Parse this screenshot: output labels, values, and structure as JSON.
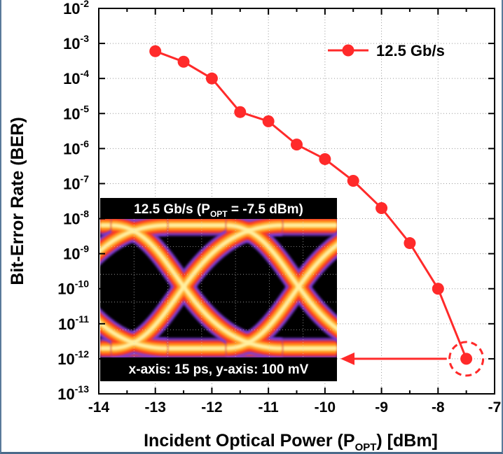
{
  "chart_data": {
    "type": "line",
    "xlabel": {
      "main": "Incident Optical Power (P",
      "sub": "OPT",
      "tail": ") [dBm]"
    },
    "ylabel": "Bit-Error Rate (BER)",
    "xlim": [
      -14,
      -7
    ],
    "ylim_exponent": [
      -13,
      -2
    ],
    "y_scale": "log",
    "grid": "dotted",
    "x_ticks": [
      "-14",
      "-13",
      "-12",
      "-11",
      "-10",
      "-9",
      "-8",
      "-7"
    ],
    "y_tick_base": "10",
    "y_tick_exponents": [
      "-2",
      "-3",
      "-4",
      "-5",
      "-6",
      "-7",
      "-8",
      "-9",
      "-10",
      "-11",
      "-12",
      "-13"
    ],
    "legend_position": "top-right",
    "series": [
      {
        "name": "12.5 Gb/s",
        "color": "#ff2a2a",
        "x": [
          -13,
          -12.5,
          -12,
          -11.5,
          -11,
          -10.5,
          -10,
          -9.5,
          -9,
          -8.5,
          -8,
          -7.5
        ],
        "y": [
          0.0006,
          0.0003,
          0.0001,
          1.1e-05,
          6e-06,
          1.3e-06,
          5e-07,
          1.2e-07,
          2e-08,
          2e-09,
          1e-10,
          1e-12
        ]
      }
    ],
    "highlight": {
      "x": -7.5,
      "y": 1e-12,
      "style": "dashed-circle-with-arrow"
    },
    "inset": {
      "title": {
        "main": "12.5 Gb/s (P",
        "sub": "OPT",
        "tail": " = -7.5 dBm)"
      },
      "caption": "x-axis: 15 ps, y-axis: 100 mV",
      "content": "eye-diagram"
    }
  }
}
